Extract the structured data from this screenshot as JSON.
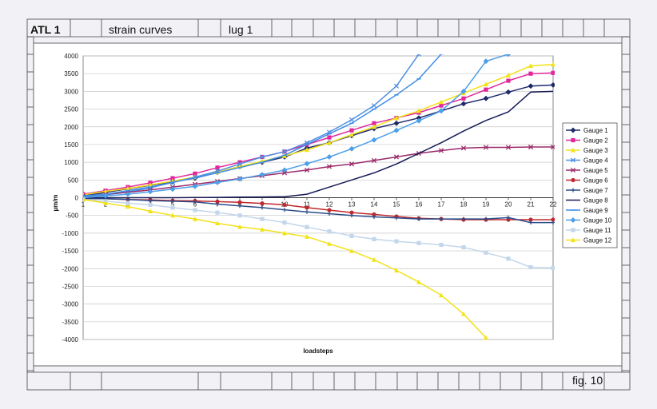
{
  "header": {
    "project": "ATL 1",
    "title": "strain   curves",
    "subtitle": "lug  1"
  },
  "footer": {
    "figure": "fig.  10"
  },
  "chart_data": {
    "type": "line",
    "xlabel": "loadsteps",
    "ylabel": "µm/m",
    "xlim": [
      1,
      22
    ],
    "ylim": [
      -4000,
      4000
    ],
    "ytick_step": 500,
    "grid": "horizontal",
    "legend_position": "right",
    "x": [
      1,
      2,
      3,
      4,
      5,
      6,
      7,
      8,
      9,
      10,
      11,
      12,
      13,
      14,
      15,
      16,
      17,
      18,
      19,
      20,
      21,
      22
    ],
    "series": [
      {
        "name": "Gauge 1",
        "color": "#1f2a6b",
        "marker": "diamond",
        "values": [
          50,
          150,
          250,
          350,
          450,
          550,
          720,
          880,
          1000,
          1150,
          1400,
          1550,
          1750,
          1950,
          2100,
          2250,
          2450,
          2650,
          2800,
          2980,
          3150,
          3180
        ]
      },
      {
        "name": "Gauge 2",
        "color": "#e0289b",
        "marker": "square",
        "values": [
          100,
          200,
          300,
          420,
          550,
          680,
          850,
          1000,
          1150,
          1300,
          1500,
          1700,
          1900,
          2100,
          2250,
          2400,
          2600,
          2800,
          3050,
          3300,
          3500,
          3520
        ]
      },
      {
        "name": "Gauge 3",
        "color": "#f2e21a",
        "marker": "triangle",
        "values": [
          80,
          180,
          260,
          360,
          470,
          580,
          720,
          880,
          1030,
          1180,
          1350,
          1550,
          1780,
          2000,
          2250,
          2450,
          2700,
          2950,
          3200,
          3450,
          3720,
          3760
        ]
      },
      {
        "name": "Gauge 4",
        "color": "#4f8fe0",
        "marker": "x",
        "values": [
          30,
          80,
          160,
          280,
          430,
          580,
          750,
          950,
          1150,
          1300,
          1550,
          1850,
          2200,
          2600,
          3150,
          4050,
          null,
          null,
          null,
          null,
          null,
          null
        ]
      },
      {
        "name": "Gauge 5",
        "color": "#9b2a6a",
        "marker": "x",
        "values": [
          50,
          100,
          150,
          220,
          300,
          380,
          460,
          540,
          620,
          700,
          780,
          880,
          950,
          1050,
          1150,
          1250,
          1330,
          1400,
          1420,
          1420,
          1430,
          1430
        ]
      },
      {
        "name": "Gauge 6",
        "color": "#c0292d",
        "marker": "circle",
        "values": [
          -20,
          -30,
          -50,
          -60,
          -80,
          -90,
          -110,
          -130,
          -160,
          -200,
          -280,
          -350,
          -420,
          -470,
          -530,
          -580,
          -600,
          -620,
          -620,
          -620,
          -620,
          -620
        ]
      },
      {
        "name": "Gauge 7",
        "color": "#2a4d8a",
        "marker": "plus",
        "values": [
          -20,
          -30,
          -50,
          -80,
          -100,
          -120,
          -180,
          -230,
          -280,
          -340,
          -400,
          -450,
          -500,
          -540,
          -570,
          -600,
          -600,
          -600,
          -600,
          -560,
          -700,
          -700
        ]
      },
      {
        "name": "Gauge 8",
        "color": "#151a57",
        "marker": "none",
        "values": [
          0,
          0,
          0,
          0,
          0,
          5,
          10,
          15,
          20,
          30,
          100,
          300,
          500,
          700,
          950,
          1250,
          1550,
          1880,
          2180,
          2420,
          2980,
          3000
        ]
      },
      {
        "name": "Gauge 9",
        "color": "#3f8ee8",
        "marker": "dash",
        "values": [
          50,
          100,
          200,
          300,
          430,
          560,
          700,
          850,
          1000,
          1200,
          1500,
          1800,
          2100,
          2500,
          2900,
          3350,
          4050,
          null,
          null,
          null,
          null,
          null
        ]
      },
      {
        "name": "Gauge 10",
        "color": "#4d9ee8",
        "marker": "diamond",
        "values": [
          0,
          50,
          100,
          170,
          240,
          320,
          430,
          530,
          650,
          780,
          960,
          1150,
          1380,
          1630,
          1900,
          2170,
          2450,
          3000,
          3850,
          4050,
          null,
          null
        ]
      },
      {
        "name": "Gauge 11",
        "color": "#c3d6ea",
        "marker": "square",
        "values": [
          -50,
          -100,
          -150,
          -200,
          -280,
          -350,
          -420,
          -500,
          -600,
          -700,
          -830,
          -950,
          -1080,
          -1170,
          -1230,
          -1280,
          -1330,
          -1400,
          -1550,
          -1720,
          -1960,
          -1980
        ]
      },
      {
        "name": "Gauge 12",
        "color": "#f2e21a",
        "marker": "triangle",
        "values": [
          -50,
          -150,
          -250,
          -380,
          -500,
          -600,
          -720,
          -820,
          -900,
          -1000,
          -1100,
          -1300,
          -1500,
          -1750,
          -2050,
          -2380,
          -2750,
          -3280,
          -3950,
          null,
          null,
          null
        ]
      }
    ]
  }
}
